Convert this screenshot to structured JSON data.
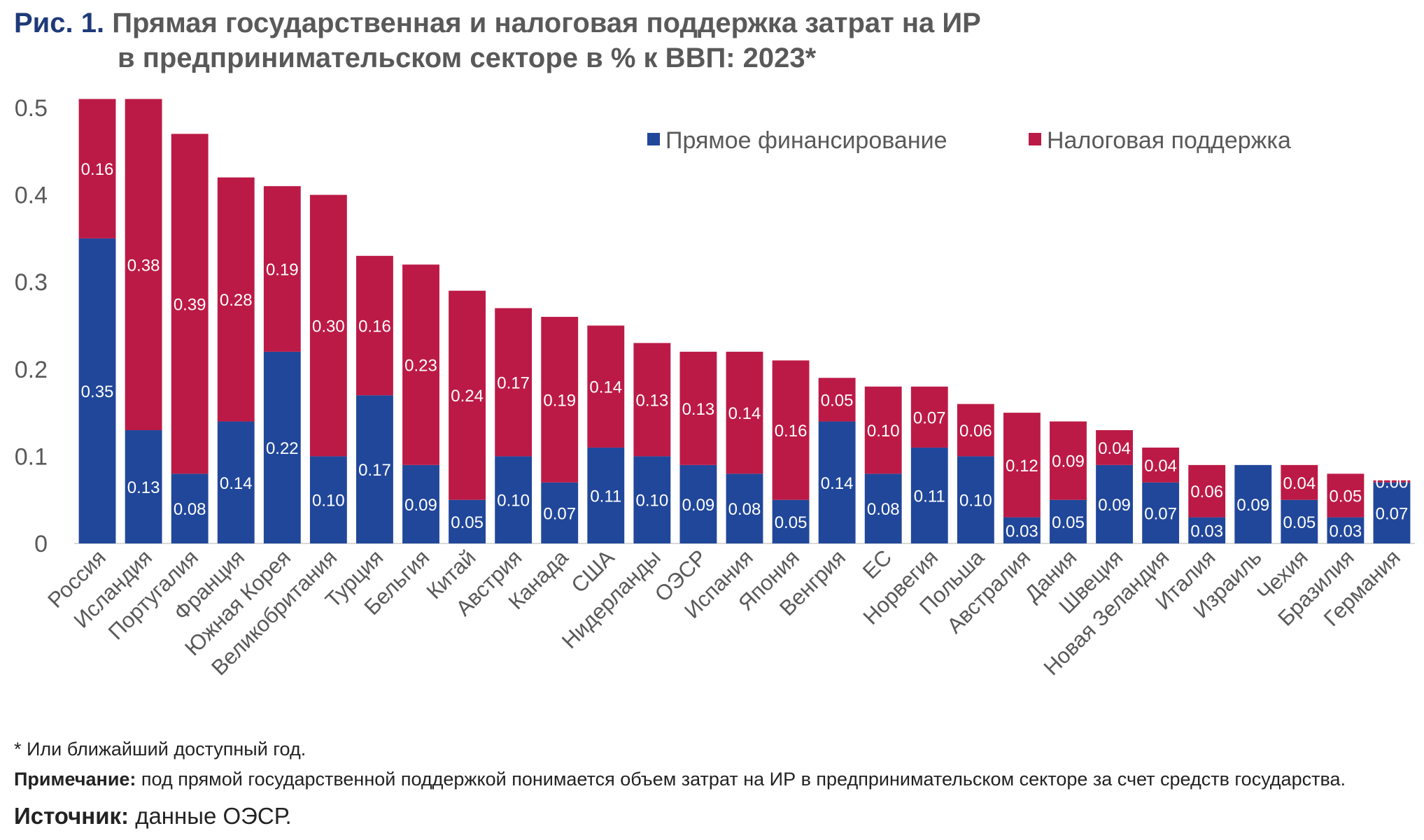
{
  "title": {
    "prefix": "Рис. 1.",
    "line1": "Прямая государственная и налоговая поддержка затрат на ИР",
    "line2": "в предпринимательском секторе в % к ВВП: 2023*"
  },
  "chart_data": {
    "type": "bar",
    "stacked": true,
    "ylim": [
      0,
      0.5
    ],
    "yticks": [
      "0",
      "0.1",
      "0.2",
      "0.3",
      "0.4",
      "0.5"
    ],
    "grid": false,
    "legend_position": "top-right",
    "categories": [
      "Россия",
      "Исландия",
      "Португалия",
      "Франция",
      "Южная Корея",
      "Великобритания",
      "Турция",
      "Бельгия",
      "Китай",
      "Австрия",
      "Канада",
      "США",
      "Нидерланды",
      "ОЭСР",
      "Испания",
      "Япония",
      "Венгрия",
      "ЕС",
      "Норвегия",
      "Польша",
      "Австралия",
      "Дания",
      "Швеция",
      "Новая Зеландия",
      "Италия",
      "Израиль",
      "Чехия",
      "Бразилия",
      "Германия"
    ],
    "series": [
      {
        "name": "Прямое финансирование",
        "color": "#21479a",
        "values": [
          0.35,
          0.13,
          0.08,
          0.14,
          0.22,
          0.1,
          0.17,
          0.09,
          0.05,
          0.1,
          0.07,
          0.11,
          0.1,
          0.09,
          0.08,
          0.05,
          0.14,
          0.08,
          0.11,
          0.1,
          0.03,
          0.05,
          0.09,
          0.07,
          0.03,
          0.09,
          0.05,
          0.03,
          0.07
        ]
      },
      {
        "name": "Налоговая поддержка",
        "color": "#bc1a46",
        "values": [
          0.16,
          0.38,
          0.39,
          0.28,
          0.19,
          0.3,
          0.16,
          0.23,
          0.24,
          0.17,
          0.19,
          0.14,
          0.13,
          0.13,
          0.14,
          0.16,
          0.05,
          0.1,
          0.07,
          0.06,
          0.12,
          0.09,
          0.04,
          0.04,
          0.06,
          null,
          0.04,
          0.05,
          0.0
        ]
      }
    ]
  },
  "footnotes": {
    "asterisk": "* Или ближайший доступный год.",
    "note_label": "Примечание:",
    "note_text": " под прямой государственной поддержкой понимается объем затрат на ИР в предпринимательском секторе за счет средств государства.",
    "source_label": "Источник:",
    "source_text": " данные ОЭСР."
  }
}
